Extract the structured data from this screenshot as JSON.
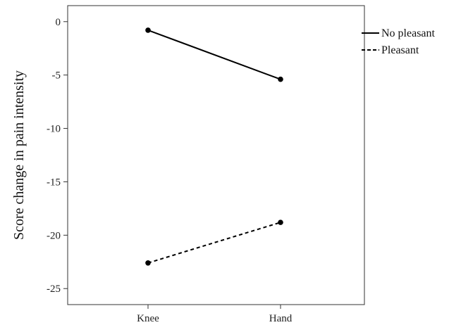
{
  "chart_data": {
    "type": "line",
    "categories": [
      "Knee",
      "Hand"
    ],
    "ylabel": "Score change in pain intensity",
    "xlabel": "",
    "ylim": [
      -26.5,
      1.5
    ],
    "yticks": [
      0,
      -5,
      -10,
      -15,
      -20,
      -25
    ],
    "grid": false,
    "legend_position": "right",
    "series": [
      {
        "name": "No pleasant",
        "values": [
          -0.8,
          -5.4
        ],
        "line_style": "solid",
        "color": "#000000"
      },
      {
        "name": "Pleasant",
        "values": [
          -22.6,
          -18.8
        ],
        "line_style": "dashed",
        "color": "#000000"
      }
    ]
  }
}
